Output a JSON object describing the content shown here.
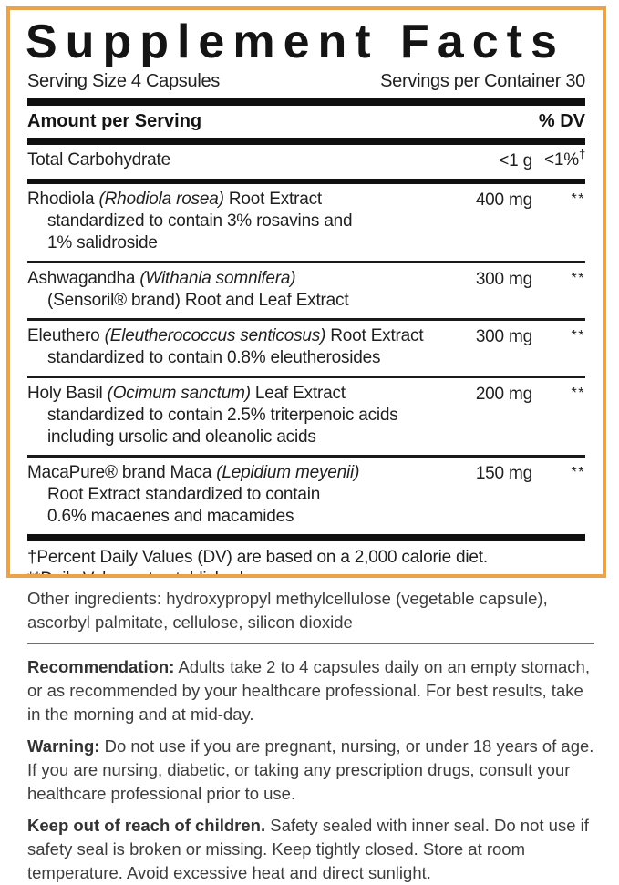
{
  "panel": {
    "title": "Supplement Facts",
    "serving_size": "Serving Size 4 Capsules",
    "servings_per_container": "Servings per Container 30",
    "amount_header": "Amount per Serving",
    "dv_header": "% DV",
    "border_color": "#E9A44B",
    "carb_row": {
      "name": "Total Carbohydrate",
      "amount": "<1 g",
      "dv": "<1%",
      "dv_sup": "†"
    },
    "ingredients": [
      {
        "pre": "Rhodiola ",
        "latin": "(Rhodiola rosea)",
        "post": " Root Extract",
        "desc": [
          "standardized to contain 3% rosavins and",
          "1% salidroside"
        ],
        "amount": "400 mg",
        "dv": "**"
      },
      {
        "pre": "Ashwagandha ",
        "latin": "(Withania somnifera)",
        "post": "",
        "desc": [
          "(Sensoril® brand) Root and Leaf Extract"
        ],
        "amount": "300 mg",
        "dv": "**"
      },
      {
        "pre": "Eleuthero ",
        "latin": "(Eleutherococcus senticosus)",
        "post": " Root Extract",
        "desc": [
          "standardized to contain 0.8% eleutherosides"
        ],
        "amount": "300 mg",
        "dv": "**"
      },
      {
        "pre": "Holy Basil ",
        "latin": "(Ocimum sanctum)",
        "post": " Leaf Extract",
        "desc": [
          "standardized to contain 2.5% triterpenoic acids",
          "including ursolic and oleanolic acids"
        ],
        "amount": "200 mg",
        "dv": "**"
      },
      {
        "pre": "MacaPure® brand Maca ",
        "latin": "(Lepidium meyenii)",
        "post": "",
        "desc": [
          "Root Extract standardized to contain",
          "0.6% macaenes and macamides"
        ],
        "amount": "150 mg",
        "dv": "**"
      }
    ],
    "footnotes": [
      "†Percent Daily Values (DV) are based on a 2,000 calorie diet.",
      "**Daily Value not established."
    ]
  },
  "sections": {
    "other_ingredients": "Other ingredients: hydroxypropyl methylcellulose (vegetable capsule), ascorbyl palmitate, cellulose, silicon dioxide",
    "recommendation_label": "Recommendation:",
    "recommendation_text": " Adults take 2 to 4 capsules daily on an empty stomach, or as recommended by your healthcare professional. For best results, take in the morning and at mid-day.",
    "warning_label": "Warning:",
    "warning_text": " Do not use if you are pregnant, nursing, or under 18 years of age. If you are nursing, diabetic, or taking any prescription drugs, consult your healthcare professional prior to use.",
    "children_label": "Keep out of reach of children.",
    "children_text": " Safety sealed with inner seal. Do not use if safety seal is broken or missing. Keep tightly closed. Store at room temperature. Avoid excessive heat and direct sunlight."
  }
}
